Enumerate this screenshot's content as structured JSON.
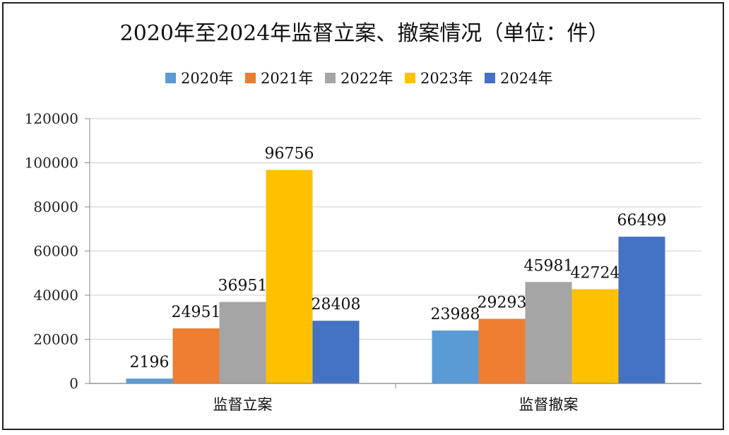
{
  "chart_data": {
    "type": "bar",
    "title": "2020年至2024年监督立案、撤案情况（单位：件）",
    "categories": [
      "监督立案",
      "监督撤案"
    ],
    "series": [
      {
        "name": "2020年",
        "color": "#5B9BD5",
        "values": [
          2196,
          23988
        ]
      },
      {
        "name": "2021年",
        "color": "#ED7D31",
        "values": [
          24951,
          29293
        ]
      },
      {
        "name": "2022年",
        "color": "#A5A5A5",
        "values": [
          36951,
          45981
        ]
      },
      {
        "name": "2023年",
        "color": "#FFC000",
        "values": [
          96756,
          42724
        ]
      },
      {
        "name": "2024年",
        "color": "#4472C4",
        "values": [
          28408,
          66499
        ]
      }
    ],
    "y_ticks": [
      "0",
      "20000",
      "40000",
      "60000",
      "80000",
      "100000",
      "120000"
    ],
    "ylim": [
      0,
      120000
    ],
    "grid": true,
    "legend_position": "top"
  }
}
